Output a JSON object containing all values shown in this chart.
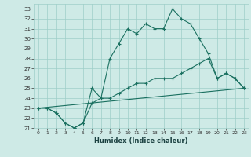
{
  "xlabel": "Humidex (Indice chaleur)",
  "ylabel": "",
  "xlim": [
    -0.5,
    23.5
  ],
  "ylim": [
    21,
    33.5
  ],
  "yticks": [
    21,
    22,
    23,
    24,
    25,
    26,
    27,
    28,
    29,
    30,
    31,
    32,
    33
  ],
  "xticks": [
    0,
    1,
    2,
    3,
    4,
    5,
    6,
    7,
    8,
    9,
    10,
    11,
    12,
    13,
    14,
    15,
    16,
    17,
    18,
    19,
    20,
    21,
    22,
    23
  ],
  "bg_color": "#ceeae6",
  "grid_color": "#9ecec8",
  "line_color": "#1a7060",
  "line1": {
    "x": [
      0,
      1,
      2,
      3,
      4,
      5,
      6,
      7,
      8,
      9,
      10,
      11,
      12,
      13,
      14,
      15,
      16,
      17,
      18,
      19,
      20,
      21,
      22,
      23
    ],
    "y": [
      23,
      23,
      22.5,
      21.5,
      21,
      21.5,
      25,
      24,
      28,
      29.5,
      31,
      30.5,
      31.5,
      31,
      31,
      33,
      32,
      31.5,
      30,
      28.5,
      26,
      26.5,
      26,
      25
    ]
  },
  "line2": {
    "x": [
      0,
      1,
      2,
      3,
      4,
      5,
      6,
      7,
      8,
      9,
      10,
      11,
      12,
      13,
      14,
      15,
      16,
      17,
      18,
      19,
      20,
      21,
      22,
      23
    ],
    "y": [
      23,
      23,
      22.5,
      21.5,
      21,
      21.5,
      23.5,
      24,
      24,
      24.5,
      25,
      25.5,
      25.5,
      26,
      26,
      26,
      26.5,
      27,
      27.5,
      28,
      26,
      26.5,
      26,
      25
    ]
  },
  "line3": {
    "x": [
      0,
      23
    ],
    "y": [
      23,
      25
    ]
  }
}
